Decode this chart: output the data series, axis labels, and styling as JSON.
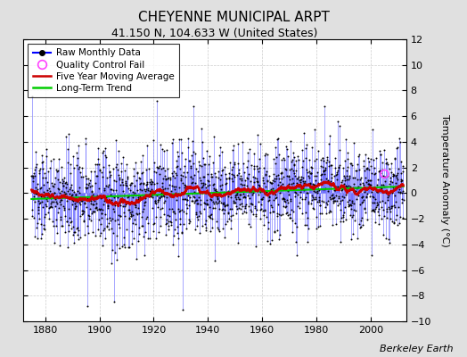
{
  "title": "CHEYENNE MUNICIPAL ARPT",
  "subtitle": "41.150 N, 104.633 W (United States)",
  "ylabel": "Temperature Anomaly (°C)",
  "watermark": "Berkeley Earth",
  "xlim": [
    1872,
    2013
  ],
  "ylim": [
    -10,
    12
  ],
  "yticks": [
    -10,
    -8,
    -6,
    -4,
    -2,
    0,
    2,
    4,
    6,
    8,
    10,
    12
  ],
  "xticks": [
    1880,
    1900,
    1920,
    1940,
    1960,
    1980,
    2000
  ],
  "plot_bg_color": "#ffffff",
  "fig_bg_color": "#e0e0e0",
  "stem_line_color": "#6666ff",
  "raw_dot_color": "#000000",
  "moving_avg_color": "#cc0000",
  "trend_color": "#00cc00",
  "qc_fail_color": "#ff44ff",
  "legend_line_color": "#0000ff",
  "title_fontsize": 11,
  "subtitle_fontsize": 9,
  "start_year": 1875,
  "end_year": 2012,
  "seed": 137
}
